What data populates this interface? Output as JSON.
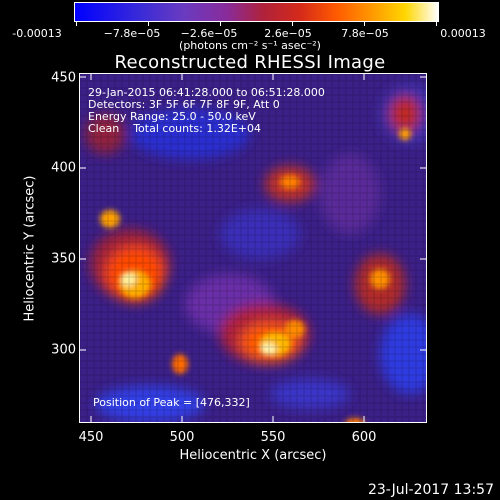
{
  "colorbar": {
    "tick_labels": [
      "-0.00013",
      "−7.8e−05",
      "−2.6e−05",
      "2.6e−05",
      "7.8e−05",
      "0.00013"
    ],
    "units": "(photons cm⁻² s⁻¹ asec⁻²)"
  },
  "title": "Reconstructed RHESSI Image",
  "annotations": {
    "time_range": "29-Jan-2015 06:41:28.000 to 06:51:28.000",
    "detectors": "Detectors: 3F 5F 6F 7F 8F 9F, Att 0",
    "energy": "Energy Range: 25.0 - 50.0 keV",
    "clean": "Clean    Total counts: 1.32E+04",
    "peak": "Position of Peak = [476,332]"
  },
  "axes": {
    "x_label": "Heliocentric X (arcsec)",
    "y_label": "Heliocentric Y (arcsec)",
    "x_ticks": [
      "450",
      "500",
      "550",
      "600"
    ],
    "y_ticks": [
      "450",
      "400",
      "350",
      "300"
    ]
  },
  "footer": "23-Jul-2017 13:57",
  "colors": {
    "background": "#000000",
    "low": "#0000ff",
    "mid": "#6a3bc0",
    "high": "#ffffff"
  }
}
